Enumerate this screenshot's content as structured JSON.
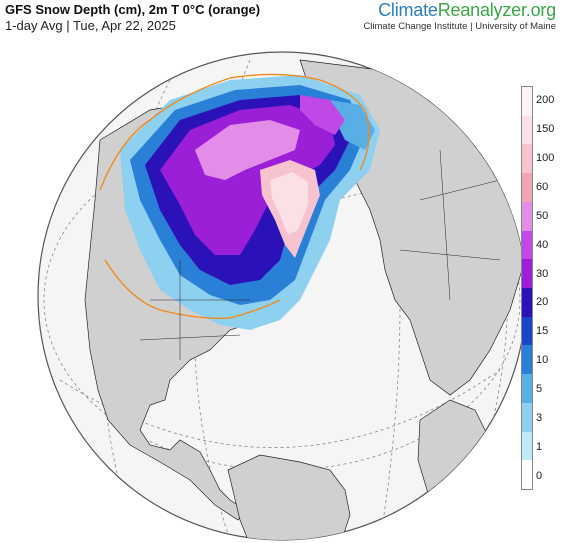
{
  "header": {
    "title": "GFS Snow Depth (cm), 2m T 0°C (orange)",
    "subtitle": "1-day Avg | Tue, Apr 22, 2025"
  },
  "brand": {
    "part1": "Climate",
    "part2": "Reanalyzer",
    "part3": ".org",
    "tagline": "Climate Change Institute | University of Maine"
  },
  "legend": {
    "labels": [
      "200",
      "150",
      "100",
      "60",
      "50",
      "40",
      "30",
      "20",
      "15",
      "10",
      "5",
      "3",
      "1",
      "0"
    ],
    "colors": [
      "#fdf4f6",
      "#fbe0e6",
      "#f6c3cf",
      "#f0a4b4",
      "#e38ce8",
      "#c048e6",
      "#9a1fd6",
      "#2a12b8",
      "#1a45c6",
      "#2a7fd6",
      "#5aaee6",
      "#8ed0f0",
      "#bdebf7",
      "#ffffff"
    ]
  },
  "map_colors": {
    "ocean": "#f5f5f5",
    "land": "#d0d0d0",
    "border": "#222222",
    "isotherm": "#f08a1a",
    "graticule": "#888888"
  }
}
